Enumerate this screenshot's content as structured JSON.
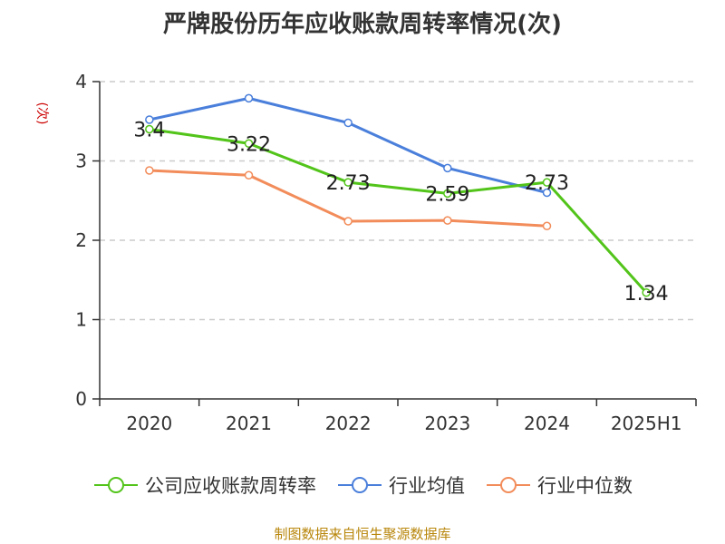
{
  "chart_data": {
    "type": "line",
    "title": "严牌股份历年应收账款周转率情况(次)",
    "ylabel": "(次)",
    "categories": [
      "2020",
      "2021",
      "2022",
      "2023",
      "2024",
      "2025H1"
    ],
    "ylim": [
      0,
      4
    ],
    "yticks": [
      0,
      1,
      2,
      3,
      4
    ],
    "grid": true,
    "legend_position": "bottom",
    "series": [
      {
        "name": "公司应收账款周转率",
        "color": "#52c41a",
        "values": [
          3.4,
          3.22,
          2.73,
          2.59,
          2.73,
          1.34
        ],
        "labels": [
          "3.4",
          "3.22",
          "2.73",
          "2.59",
          "2.73",
          "1.34"
        ]
      },
      {
        "name": "行业均值",
        "color": "#4a7fdb",
        "values": [
          3.52,
          3.79,
          3.48,
          2.91,
          2.6,
          null
        ]
      },
      {
        "name": "行业中位数",
        "color": "#f28c5a",
        "values": [
          2.88,
          2.82,
          2.24,
          2.25,
          2.18,
          null
        ]
      }
    ],
    "source": "制图数据来自恒生聚源数据库"
  }
}
